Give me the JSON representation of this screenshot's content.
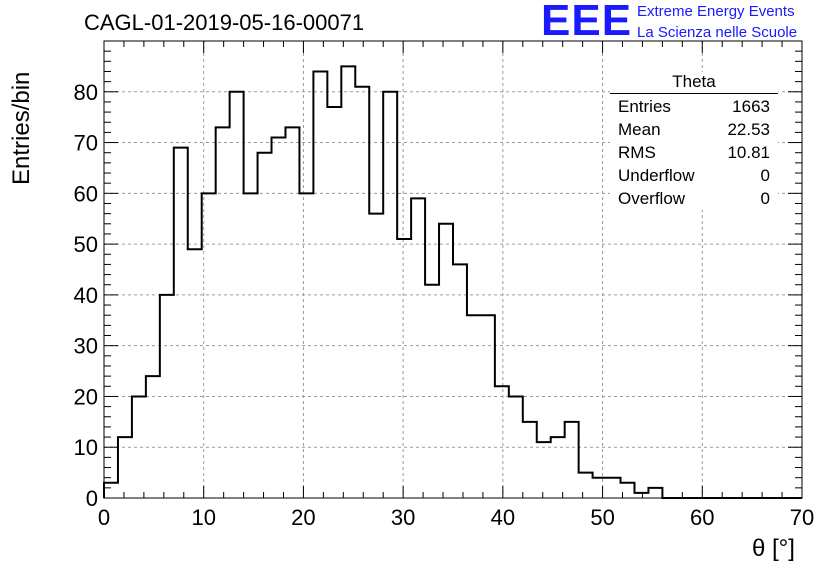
{
  "header": {
    "title": "CAGL-01-2019-05-16-00071",
    "logo_text": "EEE",
    "logo_line1": "Extreme Energy Events",
    "logo_line2": "La Scienza nelle Scuole"
  },
  "stats": {
    "title": "Theta",
    "rows": [
      {
        "label": "Entries",
        "value": "1663"
      },
      {
        "label": "Mean",
        "value": "22.53"
      },
      {
        "label": "RMS",
        "value": "10.81"
      },
      {
        "label": "Underflow",
        "value": "0"
      },
      {
        "label": "Overflow",
        "value": "0"
      }
    ]
  },
  "chart_data": {
    "type": "bar",
    "style": "step-histogram",
    "title": "CAGL-01-2019-05-16-00071",
    "xlabel": "θ [°]",
    "ylabel": "Entries/bin",
    "xlim": [
      0,
      70
    ],
    "ylim": [
      0,
      90
    ],
    "bin_width": 1.4,
    "bin_edges_start": 0,
    "values": [
      3,
      12,
      20,
      24,
      40,
      69,
      49,
      60,
      73,
      80,
      60,
      68,
      71,
      73,
      60,
      84,
      77,
      85,
      81,
      56,
      80,
      51,
      59,
      42,
      54,
      46,
      36,
      36,
      22,
      20,
      15,
      11,
      12,
      15,
      5,
      4,
      4,
      3,
      1,
      2,
      0,
      0,
      0,
      0,
      0,
      0,
      0,
      0,
      0,
      0
    ],
    "x_ticks": [
      0,
      10,
      20,
      30,
      40,
      50,
      60,
      70
    ],
    "y_ticks": [
      0,
      10,
      20,
      30,
      40,
      50,
      60,
      70,
      80
    ],
    "grid": true,
    "line_color": "#000000",
    "grid_color": "#9a9a9a"
  }
}
